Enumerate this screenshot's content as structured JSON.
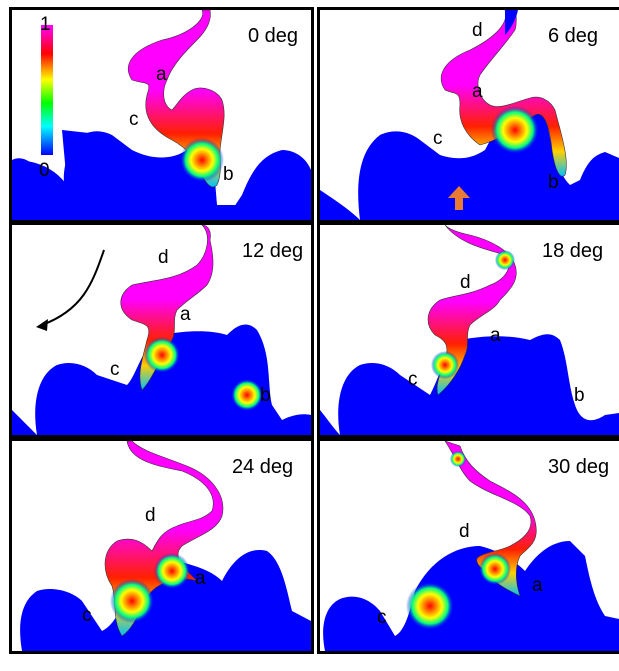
{
  "colorbar": {
    "max_label": "1",
    "min_label": "0",
    "stops": [
      "#ff00ff",
      "#ff0000",
      "#ffff00",
      "#00ff00",
      "#00ffff",
      "#0000ff"
    ]
  },
  "colors": {
    "solid": "#0000ff",
    "high": "#ff00ff",
    "arrow_marker": "#e87a33"
  },
  "panels": [
    {
      "angle": "0 deg",
      "labels": {
        "a": "a",
        "b": "b",
        "c": "c"
      }
    },
    {
      "angle": "6 deg",
      "labels": {
        "a": "a",
        "b": "b",
        "c": "c",
        "d": "d"
      }
    },
    {
      "angle": "12 deg",
      "labels": {
        "a": "a",
        "b": "b",
        "c": "c",
        "d": "d"
      }
    },
    {
      "angle": "18 deg",
      "labels": {
        "a": "a",
        "b": "b",
        "c": "c",
        "d": "d"
      }
    },
    {
      "angle": "24 deg",
      "labels": {
        "a": "a",
        "c": "c",
        "d": "d"
      }
    },
    {
      "angle": "30 deg",
      "labels": {
        "a": "a",
        "c": "c",
        "d": "d"
      }
    }
  ]
}
